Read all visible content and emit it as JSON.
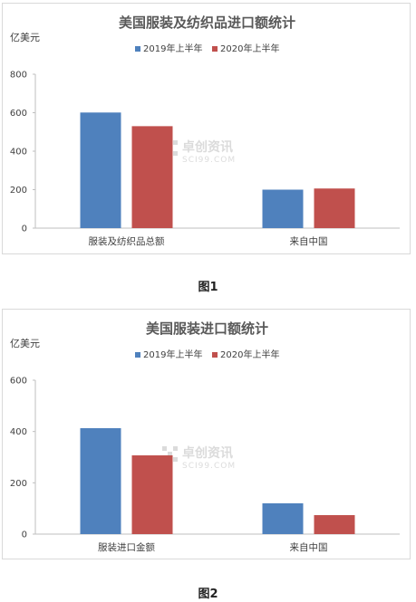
{
  "figures": [
    {
      "caption": "图1",
      "chart_data": {
        "type": "bar",
        "title": "美国服装及纺织品进口额统计",
        "ylabel": "亿美元",
        "categories": [
          "服装及纺织品总额",
          "来自中国"
        ],
        "series": [
          {
            "name": "2019年上半年",
            "color": "#4f81bd",
            "values": [
              601,
              200
            ]
          },
          {
            "name": "2020年上半年",
            "color": "#c0504d",
            "values": [
              530,
              206
            ]
          }
        ],
        "ylim": [
          0,
          800
        ],
        "yticks": [
          "0",
          "200",
          "400",
          "600",
          "800"
        ],
        "legend": "top",
        "grid": false
      }
    },
    {
      "caption": "图2",
      "chart_data": {
        "type": "bar",
        "title": "美国服装进口额统计",
        "ylabel": "亿美元",
        "categories": [
          "服装进口金额",
          "来自中国"
        ],
        "series": [
          {
            "name": "2019年上半年",
            "color": "#4f81bd",
            "values": [
              413,
              120
            ]
          },
          {
            "name": "2020年上半年",
            "color": "#c0504d",
            "values": [
              307,
              74
            ]
          }
        ],
        "ylim": [
          0,
          600
        ],
        "yticks": [
          "0",
          "200",
          "400",
          "600"
        ],
        "legend": "top",
        "grid": false
      }
    }
  ],
  "watermark": {
    "main": "卓创资讯",
    "sub": "SCI99.COM"
  },
  "colors": {
    "axis": "#bfbfbf",
    "title": "#595959",
    "text": "#404040"
  }
}
